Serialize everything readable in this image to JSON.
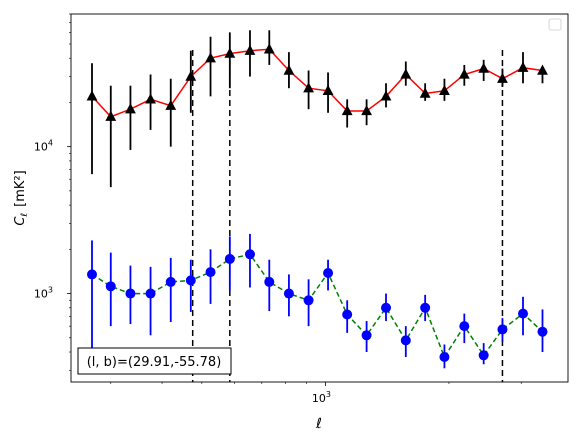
{
  "chart_data": {
    "type": "scatter",
    "title": "",
    "xlabel": "ℓ",
    "ylabel_main": "C",
    "ylabel_sub": "ℓ",
    "ylabel_unit": "[mK²]",
    "xscale": "log",
    "yscale": "log",
    "xlim": [
      240,
      3900
    ],
    "ylim": [
      250,
      80000
    ],
    "x_ticks": [
      {
        "value": 1000,
        "base": "10",
        "exp": "3"
      }
    ],
    "y_ticks": [
      {
        "value": 1000,
        "base": "10",
        "exp": "3"
      },
      {
        "value": 10000,
        "base": "10",
        "exp": "4"
      }
    ],
    "legend_placement": "top-right",
    "annotation": "(l, b)=(29.91,-55.78)",
    "vlines": [
      {
        "x": 475,
        "color": "#000000",
        "style": "dashed"
      },
      {
        "x": 585,
        "color": "#000000",
        "style": "dashed"
      },
      {
        "x": 2700,
        "color": "#000000",
        "style": "dashed"
      }
    ],
    "x": [
      270,
      300,
      335,
      375,
      420,
      470,
      525,
      585,
      655,
      730,
      815,
      910,
      1015,
      1130,
      1260,
      1405,
      1570,
      1750,
      1950,
      2180,
      2430,
      2700,
      3030,
      3380
    ],
    "series": [
      {
        "marker": "triangle",
        "marker_color": "#000000",
        "line_color": "#ff0000",
        "line_style": "solid",
        "errorbar_color": "#000000",
        "values": [
          22000,
          16000,
          18000,
          21000,
          19000,
          30000,
          40000,
          43000,
          45000,
          46000,
          33000,
          25000,
          24000,
          17500,
          17500,
          22000,
          31000,
          23000,
          24000,
          31000,
          34000,
          29000,
          34500,
          33000
        ],
        "err_low": [
          6500,
          5300,
          9500,
          13000,
          10000,
          17000,
          22000,
          25000,
          30000,
          36000,
          25000,
          18000,
          17000,
          13500,
          14000,
          18500,
          26000,
          20500,
          20500,
          26000,
          28000,
          25500,
          27000,
          27000
        ],
        "err_high": [
          37000,
          26000,
          26000,
          31000,
          29000,
          45000,
          56000,
          60000,
          62000,
          62000,
          44000,
          33000,
          32000,
          21000,
          21000,
          27000,
          38000,
          27000,
          29000,
          36000,
          39000,
          34000,
          44000,
          34000
        ]
      },
      {
        "marker": "circle",
        "marker_color": "#0000ff",
        "line_color": "#008000",
        "line_style": "dashed",
        "errorbar_color": "#0000ff",
        "values": [
          1350,
          1120,
          1000,
          1000,
          1200,
          1230,
          1400,
          1720,
          1850,
          1200,
          1000,
          900,
          1380,
          720,
          520,
          800,
          480,
          800,
          370,
          600,
          380,
          570,
          730,
          550
        ],
        "err_low": [
          400,
          600,
          620,
          520,
          640,
          750,
          850,
          1050,
          1100,
          760,
          700,
          600,
          1050,
          540,
          400,
          650,
          370,
          650,
          310,
          460,
          330,
          470,
          520,
          400
        ],
        "err_high": [
          2300,
          1900,
          1550,
          1520,
          1750,
          1700,
          2000,
          2450,
          2550,
          1700,
          1350,
          1250,
          1700,
          900,
          650,
          1000,
          600,
          980,
          450,
          730,
          460,
          680,
          950,
          780
        ]
      }
    ]
  }
}
